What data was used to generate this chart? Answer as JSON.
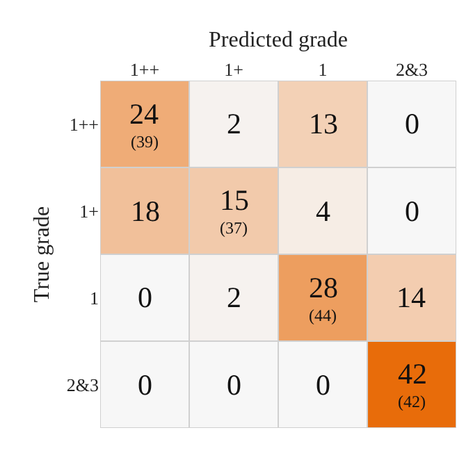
{
  "chart_data": {
    "type": "heatmap",
    "xlabel": "Predicted grade",
    "ylabel": "True grade",
    "categories": [
      "1++",
      "1+",
      "1",
      "2&3"
    ],
    "y_categories": [
      "1++",
      "1+",
      "1",
      "2&3"
    ],
    "cells": [
      [
        24,
        2,
        13,
        0
      ],
      [
        18,
        15,
        4,
        0
      ],
      [
        0,
        2,
        28,
        14
      ],
      [
        0,
        0,
        0,
        42
      ]
    ],
    "cell_labels": [
      [
        "24",
        "2",
        "13",
        "0"
      ],
      [
        "18",
        "15",
        "4",
        "0"
      ],
      [
        "0",
        "2",
        "28",
        "14"
      ],
      [
        "0",
        "0",
        "0",
        "42"
      ]
    ],
    "annotations": [
      "(39)",
      "(37)",
      "(44)",
      "(42)"
    ]
  }
}
